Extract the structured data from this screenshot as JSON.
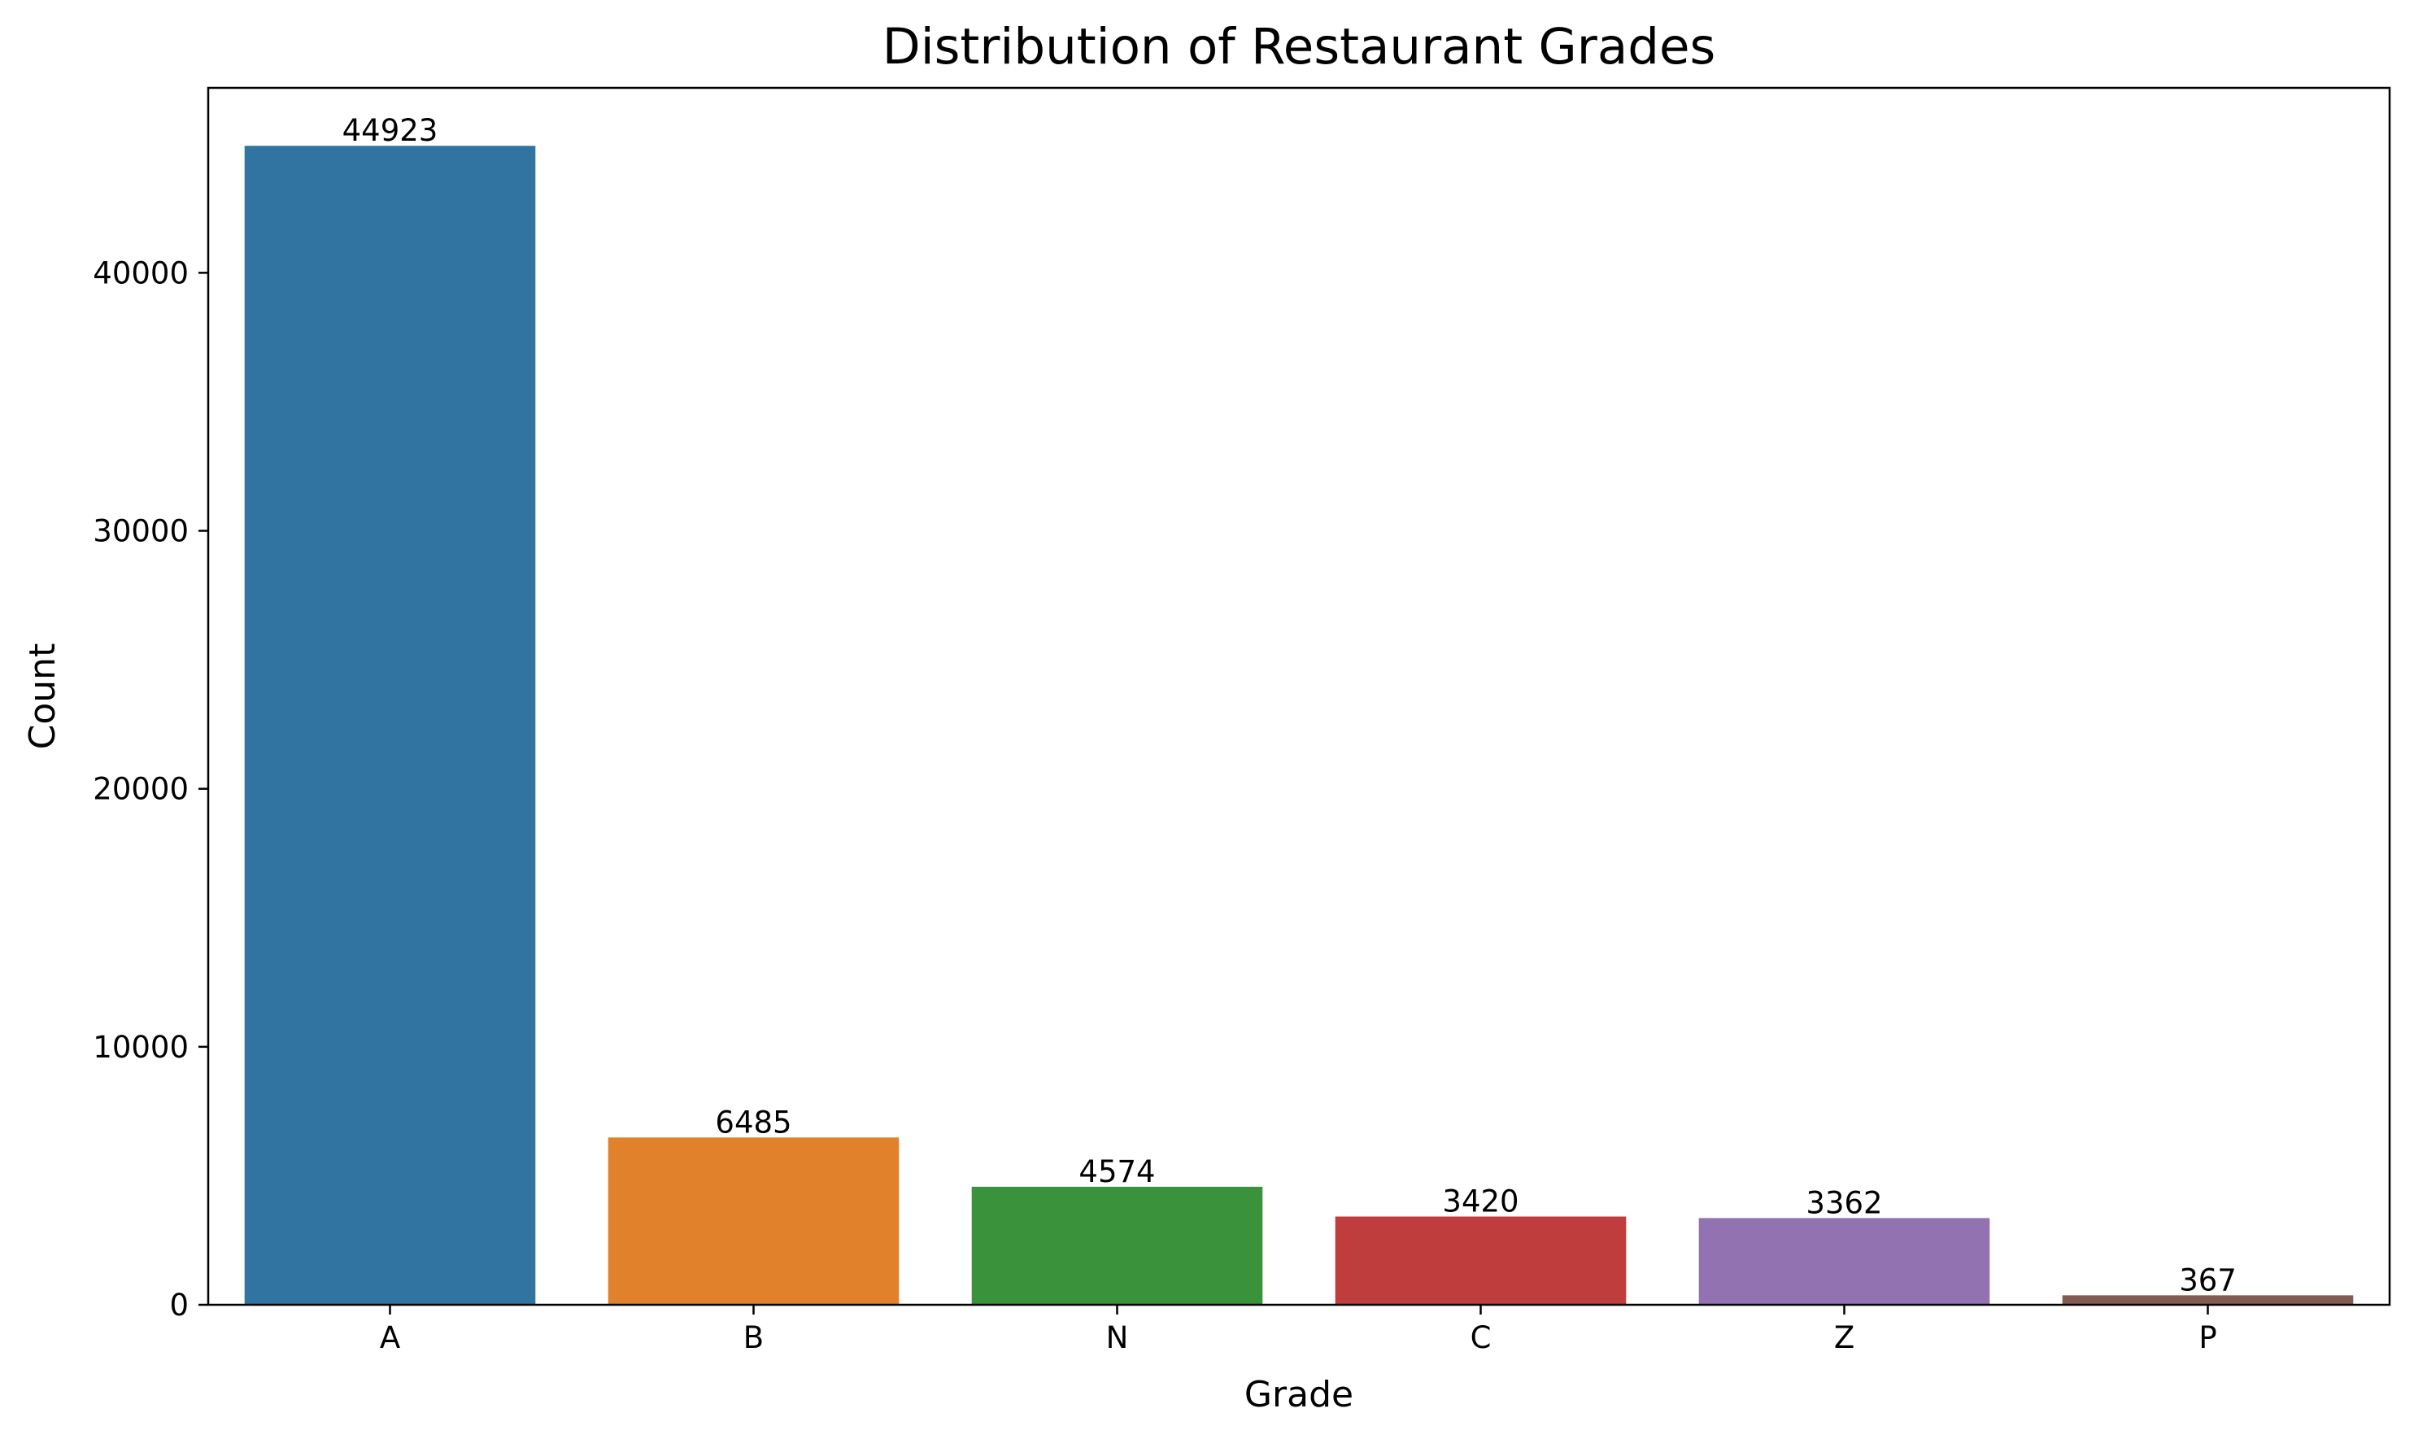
{
  "chart_data": {
    "type": "bar",
    "title": "Distribution of Restaurant Grades",
    "xlabel": "Grade",
    "ylabel": "Count",
    "categories": [
      "A",
      "B",
      "N",
      "C",
      "Z",
      "P"
    ],
    "values": [
      44923,
      6485,
      4574,
      3420,
      3362,
      367
    ],
    "data_labels": [
      "44923",
      "6485",
      "4574",
      "3420",
      "3362",
      "367"
    ],
    "colors": [
      "#3274a1",
      "#e1812c",
      "#3a923a",
      "#c03d3e",
      "#9372b2",
      "#845b53"
    ],
    "ylim": [
      0,
      47169
    ],
    "yticks": [
      0,
      10000,
      20000,
      30000,
      40000
    ],
    "ytick_labels": [
      "0",
      "10000",
      "20000",
      "30000",
      "40000"
    ],
    "grid": false,
    "legend": "none"
  }
}
